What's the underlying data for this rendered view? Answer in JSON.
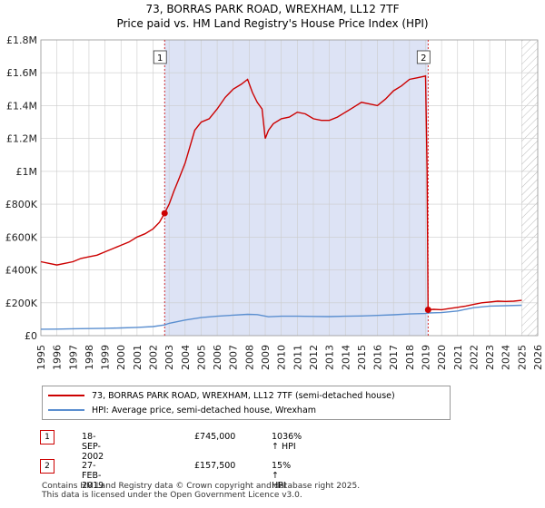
{
  "chart_data": {
    "type": "line",
    "title": "73, BORRAS PARK ROAD, WREXHAM, LL12 7TF",
    "subtitle": "Price paid vs. HM Land Registry's House Price Index (HPI)",
    "xlim": [
      1995,
      2026
    ],
    "ylim": [
      0,
      1800000
    ],
    "x_ticks": [
      1995,
      1996,
      1997,
      1998,
      1999,
      2000,
      2001,
      2002,
      2003,
      2004,
      2005,
      2006,
      2007,
      2008,
      2009,
      2010,
      2011,
      2012,
      2013,
      2014,
      2015,
      2016,
      2017,
      2018,
      2019,
      2020,
      2021,
      2022,
      2023,
      2024,
      2025,
      2026
    ],
    "y_ticks": [
      {
        "value": 0,
        "label": "£0"
      },
      {
        "value": 200000,
        "label": "£200K"
      },
      {
        "value": 400000,
        "label": "£400K"
      },
      {
        "value": 600000,
        "label": "£600K"
      },
      {
        "value": 800000,
        "label": "£800K"
      },
      {
        "value": 1000000,
        "label": "£1M"
      },
      {
        "value": 1200000,
        "label": "£1.2M"
      },
      {
        "value": 1400000,
        "label": "£1.4M"
      },
      {
        "value": 1600000,
        "label": "£1.6M"
      },
      {
        "value": 1800000,
        "label": "£1.8M"
      }
    ],
    "ownership_shading": {
      "start": 2002.72,
      "end": 2019.16
    },
    "future_hatch_start": 2025.0,
    "series": [
      {
        "name": "73, BORRAS PARK ROAD, WREXHAM, LL12 7TF (semi-detached house)",
        "color": "#cc0000",
        "x": [
          1995,
          1995.5,
          1996,
          1996.5,
          1997,
          1997.5,
          1998,
          1998.5,
          1999,
          1999.5,
          2000,
          2000.5,
          2001,
          2001.5,
          2002,
          2002.4,
          2002.72,
          2003,
          2003.3,
          2003.6,
          2004,
          2004.3,
          2004.6,
          2005,
          2005.5,
          2006,
          2006.5,
          2007,
          2007.5,
          2007.9,
          2008.2,
          2008.5,
          2008.8,
          2009.0,
          2009.2,
          2009.5,
          2010,
          2010.5,
          2011,
          2011.5,
          2012,
          2012.5,
          2013,
          2013.5,
          2014,
          2014.5,
          2015,
          2015.5,
          2016,
          2016.5,
          2017,
          2017.5,
          2018,
          2018.5,
          2019.0,
          2019.1,
          2019.16,
          2019.5,
          2020,
          2020.5,
          2021,
          2021.5,
          2022,
          2022.5,
          2023,
          2023.5,
          2024,
          2024.5,
          2025
        ],
        "y": [
          450000,
          440000,
          430000,
          440000,
          450000,
          470000,
          480000,
          490000,
          510000,
          530000,
          550000,
          570000,
          600000,
          620000,
          650000,
          690000,
          745000,
          800000,
          880000,
          950000,
          1050000,
          1150000,
          1250000,
          1300000,
          1320000,
          1380000,
          1450000,
          1500000,
          1530000,
          1560000,
          1480000,
          1420000,
          1380000,
          1200000,
          1250000,
          1290000,
          1320000,
          1330000,
          1360000,
          1350000,
          1320000,
          1310000,
          1310000,
          1330000,
          1360000,
          1390000,
          1420000,
          1410000,
          1400000,
          1440000,
          1490000,
          1520000,
          1560000,
          1570000,
          1580000,
          1000000,
          157500,
          160000,
          158000,
          165000,
          172000,
          180000,
          190000,
          200000,
          205000,
          210000,
          208000,
          210000,
          215000
        ]
      },
      {
        "name": "HPI: Average price, semi-detached house, Wrexham",
        "color": "#5b8fd0",
        "x": [
          1995,
          1996,
          1997,
          1998,
          1999,
          2000,
          2001,
          2002,
          2002.72,
          2003,
          2004,
          2005,
          2006,
          2007,
          2007.9,
          2008.5,
          2009.2,
          2010,
          2011,
          2012,
          2013,
          2014,
          2015,
          2016,
          2017,
          2018,
          2019,
          2019.16,
          2020,
          2021,
          2022,
          2023,
          2024,
          2025
        ],
        "y": [
          39000,
          40000,
          42000,
          43000,
          45000,
          47000,
          50000,
          55000,
          65000,
          75000,
          95000,
          110000,
          118000,
          125000,
          130000,
          128000,
          115000,
          118000,
          118000,
          117000,
          116000,
          118000,
          120000,
          123000,
          127000,
          132000,
          135000,
          138000,
          140000,
          150000,
          170000,
          180000,
          182000,
          185000
        ]
      }
    ],
    "annotations": [
      {
        "label": "1",
        "x": 2002.72,
        "y": 745000
      },
      {
        "label": "2",
        "x": 2019.16,
        "y": 157500
      }
    ]
  },
  "legend": {
    "property_label": "73, BORRAS PARK ROAD, WREXHAM, LL12 7TF (semi-detached house)",
    "hpi_label": "HPI: Average price, semi-detached house, Wrexham"
  },
  "sales": [
    {
      "marker": "1",
      "date": "18-SEP-2002",
      "price": "£745,000",
      "hpi": "1036% ↑ HPI"
    },
    {
      "marker": "2",
      "date": "27-FEB-2019",
      "price": "£157,500",
      "hpi": "15% ↑ HPI"
    }
  ],
  "footer": {
    "line1": "Contains HM Land Registry data © Crown copyright and database right 2025.",
    "line2": "This data is licensed under the Open Government Licence v3.0."
  },
  "colors": {
    "property": "#cc0000",
    "hpi": "#5b8fd0",
    "shade": "#dde3f5",
    "grid": "#cccccc"
  }
}
